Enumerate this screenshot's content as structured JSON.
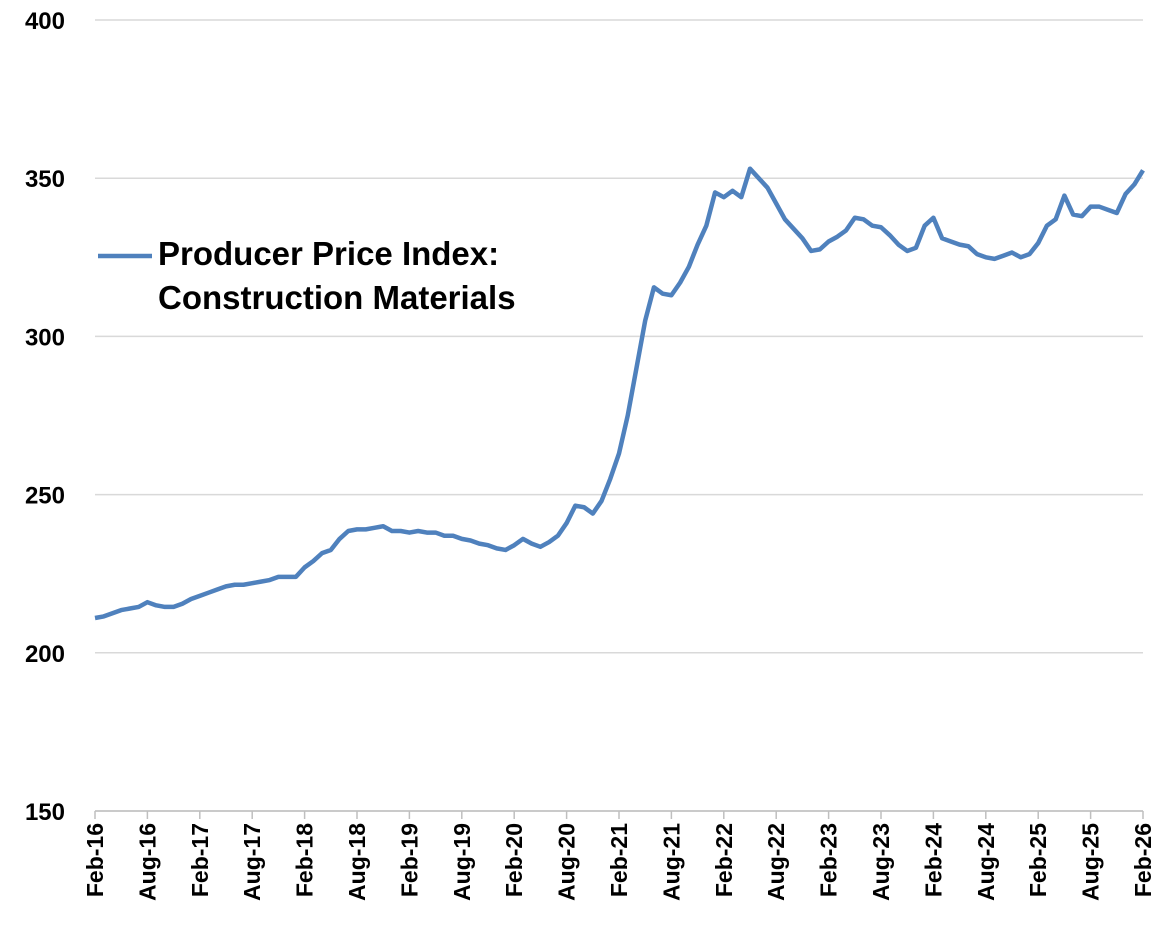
{
  "chart_data": {
    "type": "line",
    "categories": [
      "Feb-16",
      null,
      null,
      null,
      null,
      null,
      "Aug-16",
      null,
      null,
      null,
      null,
      null,
      "Feb-17",
      null,
      null,
      null,
      null,
      null,
      "Aug-17",
      null,
      null,
      null,
      null,
      null,
      "Feb-18",
      null,
      null,
      null,
      null,
      null,
      "Aug-18",
      null,
      null,
      null,
      null,
      null,
      "Feb-19",
      null,
      null,
      null,
      null,
      null,
      "Aug-19",
      null,
      null,
      null,
      null,
      null,
      "Feb-20",
      null,
      null,
      null,
      null,
      null,
      "Aug-20",
      null,
      null,
      null,
      null,
      null,
      "Feb-21",
      null,
      null,
      null,
      null,
      null,
      "Aug-21",
      null,
      null,
      null,
      null,
      null,
      "Feb-22",
      null,
      null,
      null,
      null,
      null,
      "Aug-22",
      null,
      null,
      null,
      null,
      null,
      "Feb-23",
      null,
      null,
      null,
      null,
      null,
      "Aug-23",
      null,
      null,
      null,
      null,
      null,
      "Feb-24",
      null,
      null,
      null,
      null,
      null,
      "Aug-24",
      null,
      null,
      null,
      null,
      null,
      "Feb-25",
      null,
      null,
      null,
      null,
      null,
      "Aug-25",
      null,
      null,
      null,
      null,
      null,
      "Feb-26"
    ],
    "series": [
      {
        "name": "Producer Price Index: Construction Materials",
        "color": "#4f81bd",
        "values": [
          211,
          211.5,
          212.5,
          213.5,
          214,
          214.5,
          216,
          215,
          214.5,
          214.5,
          215.5,
          217,
          218,
          219,
          220,
          221,
          221.5,
          221.5,
          222,
          222.5,
          223,
          224,
          224,
          224,
          227,
          229,
          231.5,
          232.5,
          236,
          238.5,
          239,
          239,
          239.5,
          240,
          238.5,
          238.5,
          238,
          238.5,
          238,
          238,
          237,
          237,
          236,
          235.5,
          234.5,
          234,
          233,
          232.5,
          234,
          236,
          234.5,
          233.5,
          235,
          237,
          241,
          246.5,
          246,
          244,
          248,
          255,
          263,
          275,
          290,
          305,
          315.5,
          313.5,
          313,
          317,
          322,
          329,
          335,
          345.5,
          344,
          346,
          344,
          353,
          350,
          347,
          342,
          337,
          334,
          331,
          327,
          327.5,
          330,
          331.5,
          333.5,
          337.5,
          337,
          335,
          334.5,
          332,
          329,
          327,
          328,
          335,
          337.5,
          331,
          330,
          329,
          328.5,
          326,
          325,
          324.5,
          325.5,
          326.5,
          325,
          326,
          329.5,
          335,
          337,
          344.5,
          338.5,
          338,
          341,
          341,
          340,
          339,
          345,
          348,
          352.5
        ]
      }
    ],
    "ylim": [
      150,
      400
    ],
    "yticks": [
      150,
      200,
      250,
      300,
      350,
      400
    ],
    "grid": true
  }
}
